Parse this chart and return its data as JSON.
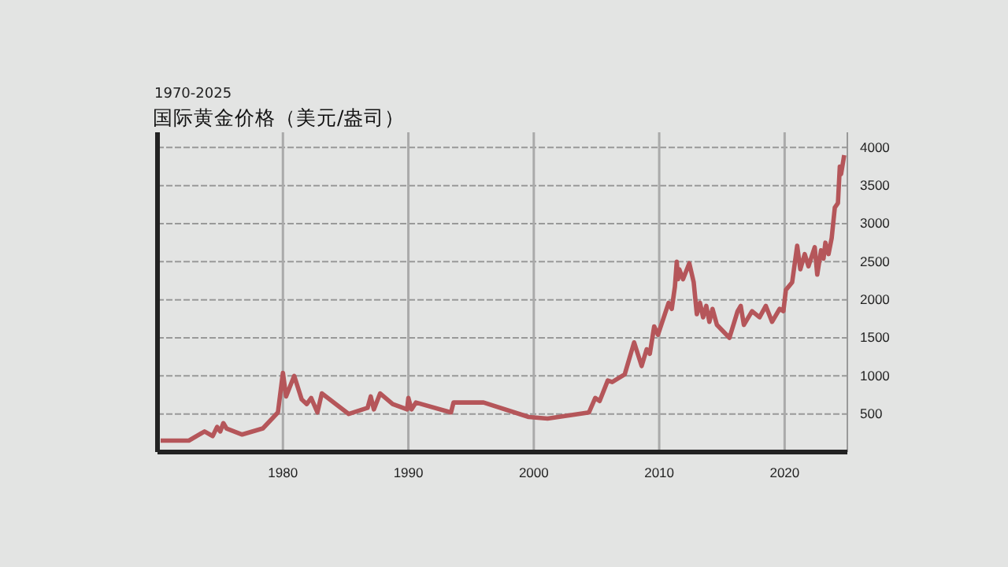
{
  "chart_data": {
    "type": "line",
    "title": "国际黄金价格（美元/盎司）",
    "subtitle": "1970-2025",
    "x": [
      1970.25,
      1972.5,
      1973.75,
      1974.4,
      1974.75,
      1975,
      1975.25,
      1975.5,
      1976.75,
      1978.4,
      1979.6,
      1980,
      1980.25,
      1980.9,
      1981.5,
      1981.9,
      1982.25,
      1982.75,
      1983.1,
      1985.25,
      1986.75,
      1987,
      1987.25,
      1987.75,
      1988.75,
      1989.9,
      1990,
      1990.25,
      1990.6,
      1993.4,
      1993.6,
      1996,
      1999.6,
      2001.1,
      2004.4,
      2004.9,
      2005.25,
      2005.9,
      2006.25,
      2007.25,
      2008,
      2008.6,
      2009,
      2009.25,
      2009.6,
      2009.9,
      2010.75,
      2011,
      2011.25,
      2011.4,
      2011.5,
      2011.6,
      2011.9,
      2012.4,
      2012.75,
      2013,
      2013.25,
      2013.5,
      2013.75,
      2014,
      2014.25,
      2014.6,
      2015.6,
      2016.25,
      2016.5,
      2016.75,
      2017.4,
      2018,
      2018.5,
      2019,
      2019.6,
      2019.9,
      2020.1,
      2020.6,
      2021,
      2021.25,
      2021.6,
      2021.9,
      2022.4,
      2022.6,
      2022.9,
      2023.1,
      2023.25,
      2023.5,
      2023.75,
      2024,
      2024.25,
      2024.4,
      2024.5,
      2024.75
    ],
    "series": [
      {
        "color": "#b5565a",
        "values": [
          150,
          150,
          270,
          210,
          330,
          270,
          380,
          310,
          230,
          310,
          520,
          1040,
          730,
          1000,
          690,
          630,
          710,
          520,
          770,
          500,
          580,
          730,
          560,
          770,
          630,
          560,
          710,
          560,
          650,
          520,
          650,
          650,
          460,
          440,
          520,
          710,
          670,
          940,
          920,
          1020,
          1440,
          1130,
          1350,
          1290,
          1650,
          1540,
          1960,
          1880,
          2170,
          2500,
          2270,
          2400,
          2270,
          2480,
          2230,
          1810,
          1960,
          1770,
          1920,
          1710,
          1880,
          1670,
          1500,
          1850,
          1920,
          1670,
          1850,
          1770,
          1920,
          1710,
          1880,
          1850,
          2130,
          2230,
          2710,
          2400,
          2600,
          2440,
          2690,
          2330,
          2650,
          2540,
          2750,
          2600,
          2810,
          3210,
          3270,
          3750,
          3650,
          3900
        ]
      }
    ],
    "xlim": [
      1970,
      2025
    ],
    "ylim": [
      0,
      4200
    ],
    "xticks": [
      1980,
      1990,
      2000,
      2010,
      2020
    ],
    "yticks": [
      500,
      1000,
      1500,
      2000,
      2500,
      3000,
      3500,
      4000
    ],
    "grid": true,
    "line_style": "solid",
    "marker": "none"
  }
}
